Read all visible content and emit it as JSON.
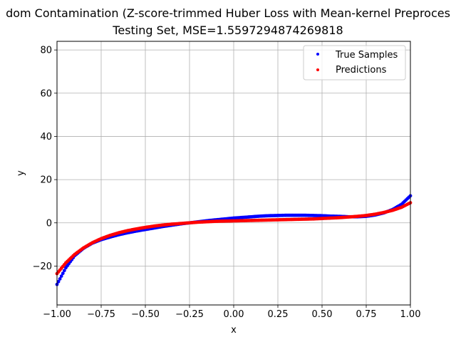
{
  "chart_data": {
    "type": "scatter",
    "title_line1": "dom Contamination (Z-score-trimmed Huber Loss with Mean-kernel Preproces",
    "title_line2": "Testing Set, MSE=1.5597294874269818",
    "xlabel": "x",
    "ylabel": "y",
    "xlim": [
      -1.0,
      1.0
    ],
    "ylim": [
      -38,
      84
    ],
    "xticks": [
      "-1.00",
      "-0.75",
      "-0.50",
      "-0.25",
      "0.00",
      "0.25",
      "0.50",
      "0.75",
      "1.00"
    ],
    "yticks": [
      "-20",
      "0",
      "20",
      "40",
      "60",
      "80"
    ],
    "grid": true,
    "legend_position": "top-right",
    "series": [
      {
        "name": "True Samples",
        "color": "#0000ff",
        "x": [
          -1.0,
          -0.95,
          -0.9,
          -0.85,
          -0.8,
          -0.75,
          -0.7,
          -0.65,
          -0.6,
          -0.55,
          -0.5,
          -0.45,
          -0.4,
          -0.35,
          -0.3,
          -0.25,
          -0.2,
          -0.15,
          -0.1,
          -0.05,
          0.0,
          0.05,
          0.1,
          0.15,
          0.2,
          0.25,
          0.3,
          0.35,
          0.4,
          0.45,
          0.5,
          0.55,
          0.6,
          0.65,
          0.7,
          0.75,
          0.8,
          0.85,
          0.9,
          0.95,
          1.0
        ],
        "y": [
          -28.5,
          -20.8,
          -15.2,
          -11.8,
          -9.4,
          -7.8,
          -6.6,
          -5.5,
          -4.6,
          -3.8,
          -3.1,
          -2.4,
          -1.7,
          -1.1,
          -0.5,
          0.0,
          0.5,
          1.0,
          1.4,
          1.8,
          2.2,
          2.5,
          2.8,
          3.1,
          3.3,
          3.4,
          3.5,
          3.5,
          3.5,
          3.4,
          3.3,
          3.1,
          3.0,
          2.8,
          2.8,
          3.0,
          3.6,
          4.6,
          6.2,
          8.6,
          12.5
        ]
      },
      {
        "name": "Predictions",
        "color": "#ff0000",
        "x": [
          -1.0,
          -0.95,
          -0.9,
          -0.85,
          -0.8,
          -0.75,
          -0.7,
          -0.65,
          -0.6,
          -0.55,
          -0.5,
          -0.45,
          -0.4,
          -0.35,
          -0.3,
          -0.25,
          -0.2,
          -0.15,
          -0.1,
          -0.05,
          0.0,
          0.05,
          0.1,
          0.15,
          0.2,
          0.25,
          0.3,
          0.35,
          0.4,
          0.45,
          0.5,
          0.55,
          0.6,
          0.65,
          0.7,
          0.75,
          0.8,
          0.85,
          0.9,
          0.95,
          1.0
        ],
        "y": [
          -23.5,
          -18.5,
          -14.6,
          -11.6,
          -9.2,
          -7.3,
          -5.8,
          -4.6,
          -3.6,
          -2.8,
          -2.1,
          -1.5,
          -1.0,
          -0.6,
          -0.3,
          0.0,
          0.3,
          0.5,
          0.7,
          0.8,
          0.9,
          1.0,
          1.1,
          1.2,
          1.3,
          1.4,
          1.5,
          1.6,
          1.7,
          1.8,
          2.0,
          2.2,
          2.4,
          2.7,
          3.0,
          3.4,
          4.0,
          4.8,
          5.8,
          7.2,
          9.3
        ]
      }
    ]
  }
}
